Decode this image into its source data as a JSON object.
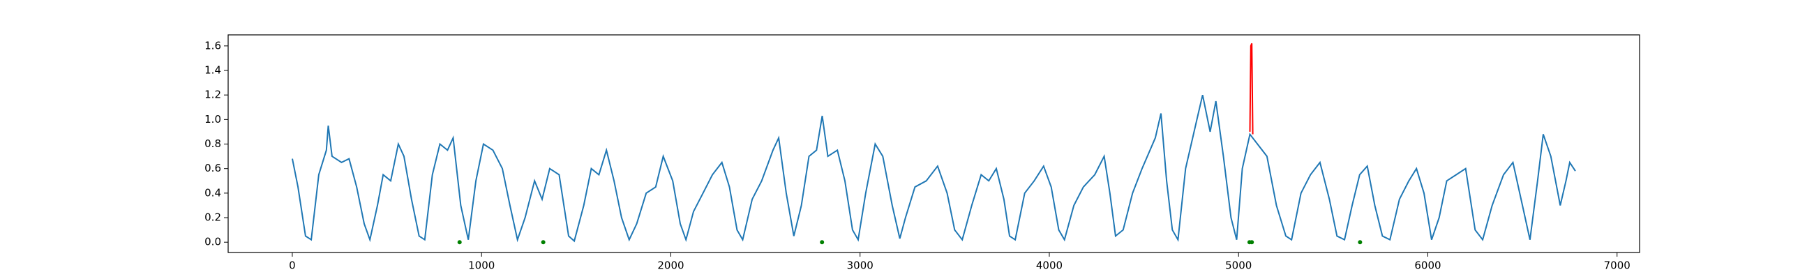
{
  "chart_data": {
    "type": "line",
    "xlim": [
      -339,
      7119
    ],
    "ylim": [
      -0.084,
      1.69
    ],
    "xticks": [
      0,
      1000,
      2000,
      3000,
      4000,
      5000,
      6000,
      7000
    ],
    "yticks": [
      {
        "value": 0,
        "label": "0.0"
      },
      0.2,
      0.4,
      0.6,
      0.8,
      {
        "value": 1,
        "label": "1.0"
      },
      1.2,
      1.4,
      1.6
    ],
    "series": [
      {
        "type": "line",
        "color": "#1f77b4",
        "x": [
          0,
          30,
          70,
          100,
          140,
          180,
          190,
          210,
          260,
          300,
          340,
          380,
          410,
          450,
          480,
          520,
          560,
          590,
          630,
          670,
          700,
          740,
          780,
          820,
          850,
          890,
          930,
          970,
          1010,
          1060,
          1110,
          1150,
          1190,
          1230,
          1280,
          1320,
          1360,
          1410,
          1460,
          1490,
          1540,
          1580,
          1620,
          1660,
          1700,
          1740,
          1780,
          1820,
          1870,
          1920,
          1960,
          2010,
          2050,
          2080,
          2120,
          2170,
          2220,
          2270,
          2310,
          2350,
          2380,
          2430,
          2480,
          2540,
          2570,
          2610,
          2650,
          2690,
          2730,
          2770,
          2800,
          2830,
          2880,
          2920,
          2960,
          2990,
          3030,
          3080,
          3120,
          3170,
          3210,
          3240,
          3290,
          3350,
          3410,
          3460,
          3500,
          3540,
          3590,
          3640,
          3680,
          3720,
          3760,
          3790,
          3820,
          3870,
          3920,
          3970,
          4010,
          4050,
          4080,
          4130,
          4180,
          4240,
          4290,
          4320,
          4350,
          4390,
          4440,
          4490,
          4560,
          4590,
          4620,
          4650,
          4680,
          4720,
          4780,
          4810,
          4850,
          4880,
          4920,
          4960,
          4990,
          5020,
          5060,
          5100,
          5150,
          5200,
          5250,
          5280,
          5330,
          5380,
          5430,
          5480,
          5520,
          5560,
          5600,
          5640,
          5680,
          5720,
          5760,
          5800,
          5850,
          5900,
          5940,
          5980,
          6020,
          6060,
          6100,
          6150,
          6200,
          6250,
          6290,
          6340,
          6400,
          6450,
          6500,
          6540,
          6580,
          6610,
          6650,
          6700,
          6730,
          6750,
          6780
        ],
        "values": [
          0.68,
          0.45,
          0.05,
          0.02,
          0.55,
          0.75,
          0.95,
          0.7,
          0.65,
          0.68,
          0.45,
          0.15,
          0.02,
          0.3,
          0.55,
          0.5,
          0.8,
          0.7,
          0.35,
          0.05,
          0.02,
          0.55,
          0.8,
          0.75,
          0.85,
          0.3,
          0.02,
          0.5,
          0.8,
          0.75,
          0.6,
          0.3,
          0.02,
          0.2,
          0.5,
          0.35,
          0.6,
          0.55,
          0.05,
          0.01,
          0.3,
          0.6,
          0.55,
          0.75,
          0.5,
          0.2,
          0.02,
          0.15,
          0.4,
          0.45,
          0.7,
          0.5,
          0.15,
          0.02,
          0.25,
          0.4,
          0.55,
          0.65,
          0.45,
          0.1,
          0.02,
          0.35,
          0.5,
          0.75,
          0.85,
          0.4,
          0.05,
          0.3,
          0.7,
          0.75,
          1.03,
          0.7,
          0.75,
          0.5,
          0.1,
          0.02,
          0.4,
          0.8,
          0.7,
          0.3,
          0.03,
          0.2,
          0.45,
          0.5,
          0.62,
          0.4,
          0.1,
          0.02,
          0.3,
          0.55,
          0.5,
          0.6,
          0.35,
          0.05,
          0.02,
          0.4,
          0.5,
          0.62,
          0.45,
          0.1,
          0.02,
          0.3,
          0.45,
          0.55,
          0.7,
          0.4,
          0.05,
          0.1,
          0.4,
          0.6,
          0.85,
          1.05,
          0.5,
          0.1,
          0.02,
          0.6,
          1.0,
          1.2,
          0.9,
          1.15,
          0.7,
          0.2,
          0.02,
          0.6,
          0.88,
          0.8,
          0.7,
          0.3,
          0.05,
          0.02,
          0.4,
          0.55,
          0.65,
          0.35,
          0.05,
          0.02,
          0.3,
          0.55,
          0.62,
          0.3,
          0.05,
          0.02,
          0.35,
          0.5,
          0.6,
          0.4,
          0.02,
          0.2,
          0.5,
          0.55,
          0.6,
          0.1,
          0.02,
          0.3,
          0.55,
          0.65,
          0.3,
          0.02,
          0.5,
          0.88,
          0.7,
          0.3,
          0.5,
          0.65,
          0.58
        ]
      },
      {
        "type": "line",
        "color": "#ff0000",
        "x": [
          5060,
          5065,
          5070,
          5075
        ],
        "values": [
          0.9,
          1.6,
          1.62,
          0.88
        ]
      },
      {
        "type": "scatter",
        "color": "#008000",
        "x": [
          884,
          1326,
          2799,
          5058,
          5070,
          5642
        ],
        "values": [
          0,
          0,
          0,
          0,
          0,
          0
        ]
      }
    ]
  }
}
